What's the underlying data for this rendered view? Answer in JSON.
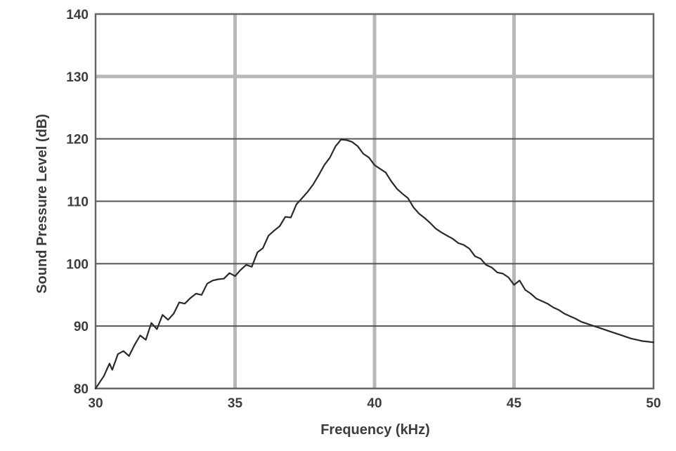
{
  "chart_data": {
    "type": "line",
    "title": "",
    "xlabel": "Frequency (kHz)",
    "ylabel": "Sound Pressure Level (dB)",
    "xlim": [
      30,
      50
    ],
    "ylim": [
      80,
      140
    ],
    "x_ticks": [
      30,
      35,
      40,
      45,
      50
    ],
    "y_ticks": [
      80,
      90,
      100,
      110,
      120,
      130,
      140
    ],
    "x_tick_labels": [
      "30",
      "35",
      "40",
      "45",
      "50"
    ],
    "y_tick_labels": [
      "80",
      "90",
      "100",
      "110",
      "120",
      "130",
      "140"
    ],
    "grid": true,
    "legend": "none",
    "colors": {
      "line": "#2a2a2a",
      "grid_vertical": "#b8b8b8",
      "grid_horizontal": "#555555",
      "major_horizontal_grid": "#b8b8b8",
      "frame": "#666666",
      "text": "#3c3c3c"
    },
    "series": [
      {
        "x": [
          30.0,
          30.3,
          30.5,
          30.6,
          30.8,
          31.0,
          31.2,
          31.4,
          31.6,
          31.8,
          32.0,
          32.2,
          32.4,
          32.6,
          32.8,
          33.0,
          33.2,
          33.4,
          33.6,
          33.8,
          34.0,
          34.2,
          34.4,
          34.6,
          34.8,
          35.0,
          35.2,
          35.4,
          35.6,
          35.8,
          36.0,
          36.2,
          36.4,
          36.6,
          36.8,
          37.0,
          37.2,
          37.4,
          37.6,
          37.8,
          38.0,
          38.2,
          38.4,
          38.6,
          38.8,
          39.0,
          39.2,
          39.4,
          39.6,
          39.8,
          40.0,
          40.2,
          40.4,
          40.6,
          40.8,
          41.0,
          41.2,
          41.4,
          41.6,
          41.8,
          42.0,
          42.2,
          42.4,
          42.6,
          42.8,
          43.0,
          43.2,
          43.4,
          43.6,
          43.8,
          44.0,
          44.2,
          44.4,
          44.6,
          44.8,
          45.0,
          45.2,
          45.4,
          45.6,
          45.8,
          46.0,
          46.2,
          46.4,
          46.6,
          46.8,
          47.0,
          47.2,
          47.4,
          47.6,
          47.8,
          48.0,
          48.2,
          48.4,
          48.6,
          48.8,
          49.0,
          49.2,
          49.4,
          49.6,
          49.8,
          50.0
        ],
        "y": [
          80.0,
          82.0,
          84.0,
          83.0,
          85.5,
          86.0,
          85.2,
          87.0,
          88.5,
          87.8,
          90.5,
          89.5,
          91.8,
          91.0,
          92.0,
          93.8,
          93.6,
          94.5,
          95.2,
          95.0,
          96.8,
          97.3,
          97.5,
          97.6,
          98.5,
          98.0,
          99.0,
          99.8,
          99.5,
          101.8,
          102.5,
          104.5,
          105.3,
          106.0,
          107.5,
          107.4,
          109.5,
          110.5,
          111.5,
          112.7,
          114.2,
          115.8,
          117.0,
          118.8,
          119.9,
          119.8,
          119.5,
          118.8,
          117.6,
          117.0,
          115.8,
          115.2,
          114.6,
          113.2,
          112.0,
          111.2,
          110.5,
          109.0,
          108.0,
          107.3,
          106.5,
          105.6,
          105.0,
          104.5,
          104.0,
          103.3,
          103.0,
          102.4,
          101.2,
          100.8,
          99.8,
          99.4,
          98.6,
          98.4,
          97.8,
          96.6,
          97.3,
          95.8,
          95.2,
          94.4,
          94.0,
          93.6,
          93.0,
          92.6,
          92.0,
          91.6,
          91.2,
          90.7,
          90.4,
          90.1,
          89.8,
          89.5,
          89.2,
          88.9,
          88.6,
          88.3,
          88.0,
          87.8,
          87.6,
          87.5,
          87.4
        ]
      }
    ]
  }
}
